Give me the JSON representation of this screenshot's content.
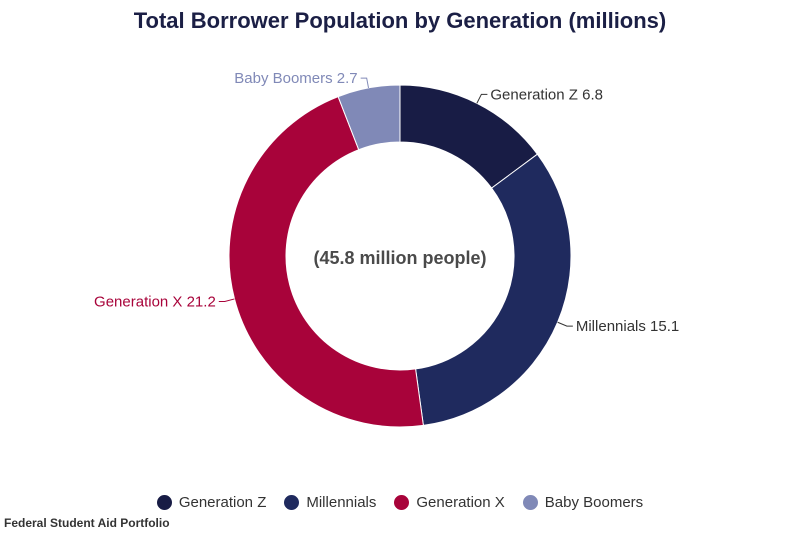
{
  "chart_data": {
    "type": "pie",
    "title": "Total Borrower Population by Generation (millions)",
    "center_label": "(45.8 million people)",
    "categories": [
      "Generation Z",
      "Millennials",
      "Generation X",
      "Baby Boomers"
    ],
    "values": [
      6.8,
      15.1,
      21.2,
      2.7
    ],
    "colors": [
      "#181c45",
      "#1f2a5e",
      "#a8033a",
      "#8089b7"
    ],
    "label_colors": [
      "#333333",
      "#333333",
      "#a8033a",
      "#8089b7"
    ],
    "legend_position": "bottom"
  },
  "source": "Federal Student Aid Portfolio"
}
